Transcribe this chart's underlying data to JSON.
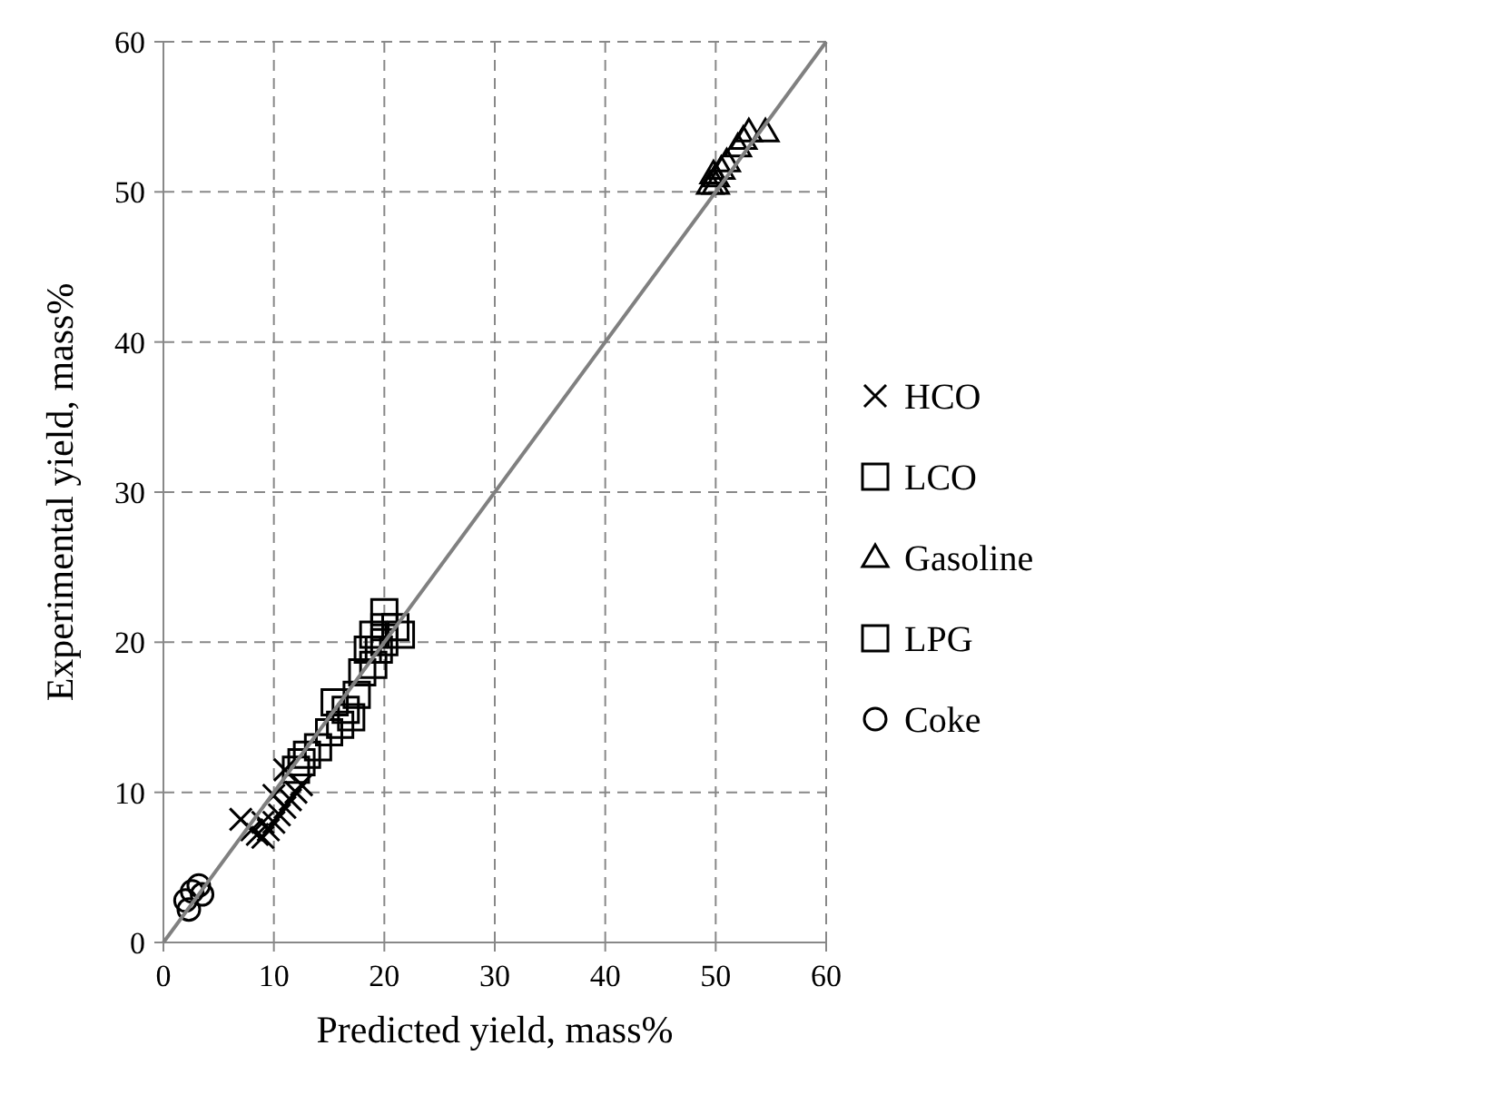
{
  "chart_data": {
    "type": "scatter",
    "xlabel": "Predicted yield, mass%",
    "ylabel": "Experimental yield, mass%",
    "xlim": [
      0,
      60
    ],
    "ylim": [
      0,
      60
    ],
    "xticks": [
      0,
      10,
      20,
      30,
      40,
      50,
      60
    ],
    "yticks": [
      0,
      10,
      20,
      30,
      40,
      50,
      60
    ],
    "grid": true,
    "legend": "right",
    "series": [
      {
        "name": "HCO",
        "color": "#000000",
        "marker": "cross",
        "x": [
          7,
          8,
          8.5,
          9,
          9.5,
          10,
          10.5,
          11,
          11.5,
          12,
          11,
          10,
          12.5,
          9
        ],
        "values": [
          8.2,
          7.5,
          7.2,
          7,
          7.5,
          8,
          8.5,
          9,
          9.5,
          10,
          11.5,
          9.8,
          10.5,
          8
        ]
      },
      {
        "name": "LCO",
        "color": "#000000",
        "marker": "square",
        "x": [
          12,
          12.5,
          13,
          14,
          15,
          16,
          17,
          15.5,
          16.5,
          17.5
        ],
        "values": [
          11.5,
          12,
          12.5,
          13,
          14,
          14.5,
          15,
          16,
          15.5,
          16.5
        ]
      },
      {
        "name": "Gasoline",
        "color": "#000000",
        "marker": "triangle",
        "x": [
          49.5,
          50,
          50.5,
          51,
          52,
          52.5,
          53,
          54.5,
          50,
          49.8
        ],
        "values": [
          50.5,
          51,
          51.5,
          52,
          53,
          53.5,
          54,
          54,
          50.5,
          51.2
        ]
      },
      {
        "name": "LPG",
        "color": "#000000",
        "marker": "square",
        "x": [
          18,
          19,
          19.5,
          20,
          19,
          20,
          21,
          20,
          21.5,
          18.5
        ],
        "values": [
          18,
          18.5,
          19.5,
          20,
          20.5,
          21,
          21,
          22,
          20.5,
          19.5
        ]
      },
      {
        "name": "Coke",
        "color": "#000000",
        "marker": "circle",
        "x": [
          2,
          2.6,
          3.2,
          2.3,
          3.5
        ],
        "values": [
          2.8,
          3.4,
          3.8,
          2.2,
          3.2
        ]
      },
      {
        "type": "line",
        "color": "#808080",
        "x": [
          0,
          60
        ],
        "values": [
          0,
          60
        ]
      }
    ]
  }
}
